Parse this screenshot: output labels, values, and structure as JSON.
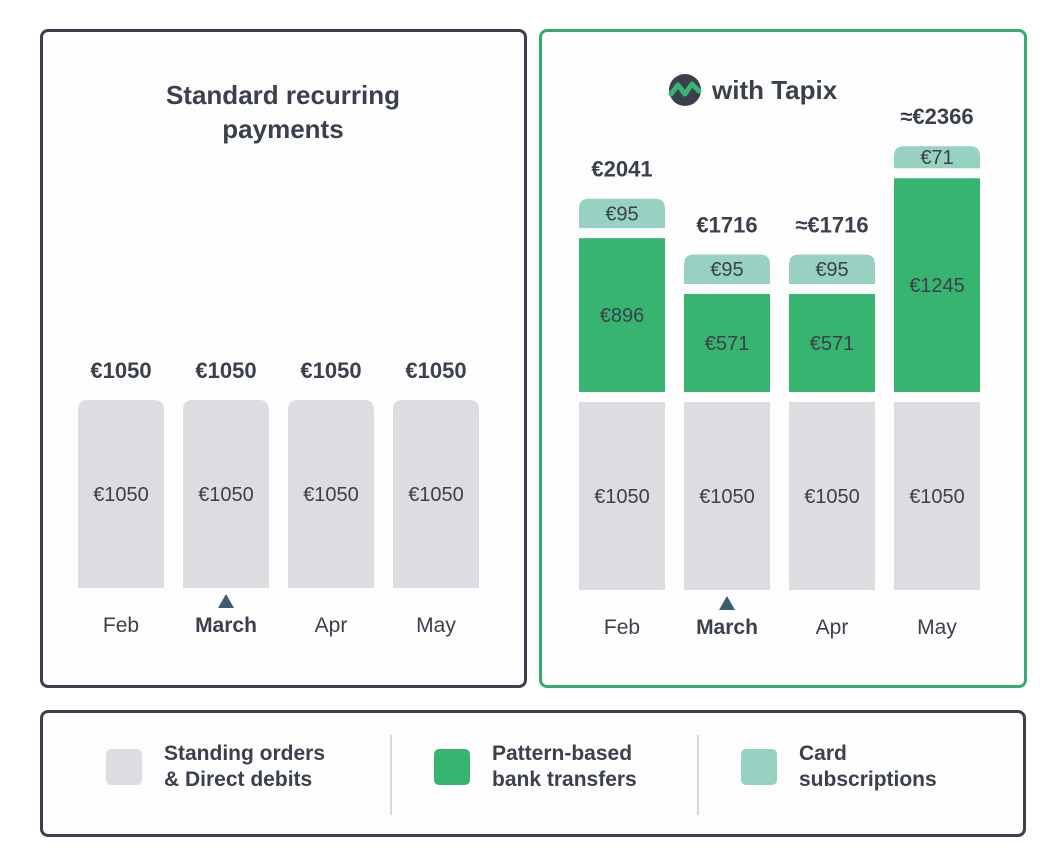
{
  "colors": {
    "standing": "#dddde1",
    "pattern": "#38b471",
    "card": "#97d1c1",
    "text": "#3b414c",
    "marker": "#3f5b6d"
  },
  "chart_data": [
    {
      "type": "bar",
      "title": "Standard recurring payments",
      "categories": [
        "Feb",
        "March",
        "Apr",
        "May"
      ],
      "highlight_category": "March",
      "series": [
        {
          "name": "Standing orders & Direct debits",
          "values": [
            1050,
            1050,
            1050,
            1050
          ],
          "labels": [
            "€1050",
            "€1050",
            "€1050",
            "€1050"
          ]
        }
      ],
      "totals": [
        "€1050",
        "€1050",
        "€1050",
        "€1050"
      ]
    },
    {
      "type": "bar",
      "stacked": true,
      "title": "with Tapix",
      "categories": [
        "Feb",
        "March",
        "Apr",
        "May"
      ],
      "highlight_category": "March",
      "series": [
        {
          "name": "Standing orders & Direct debits",
          "values": [
            1050,
            1050,
            1050,
            1050
          ],
          "labels": [
            "€1050",
            "€1050",
            "€1050",
            "€1050"
          ]
        },
        {
          "name": "Pattern-based bank transfers",
          "values": [
            896,
            571,
            571,
            1245
          ],
          "labels": [
            "€896",
            "€571",
            "€571",
            "€1245"
          ]
        },
        {
          "name": "Card subscriptions",
          "values": [
            95,
            95,
            95,
            71
          ],
          "labels": [
            "€95",
            "€95",
            "€95",
            "€71"
          ]
        }
      ],
      "totals": [
        "€2041",
        "€1716",
        "≈€1716",
        "≈€2366"
      ]
    }
  ],
  "legend": [
    {
      "label": "Standing orders\n& Direct debits",
      "color": "#dddde1"
    },
    {
      "label": "Pattern-based\nbank transfers",
      "color": "#38b471"
    },
    {
      "label": "Card\nsubscriptions",
      "color": "#97d1c1"
    }
  ]
}
